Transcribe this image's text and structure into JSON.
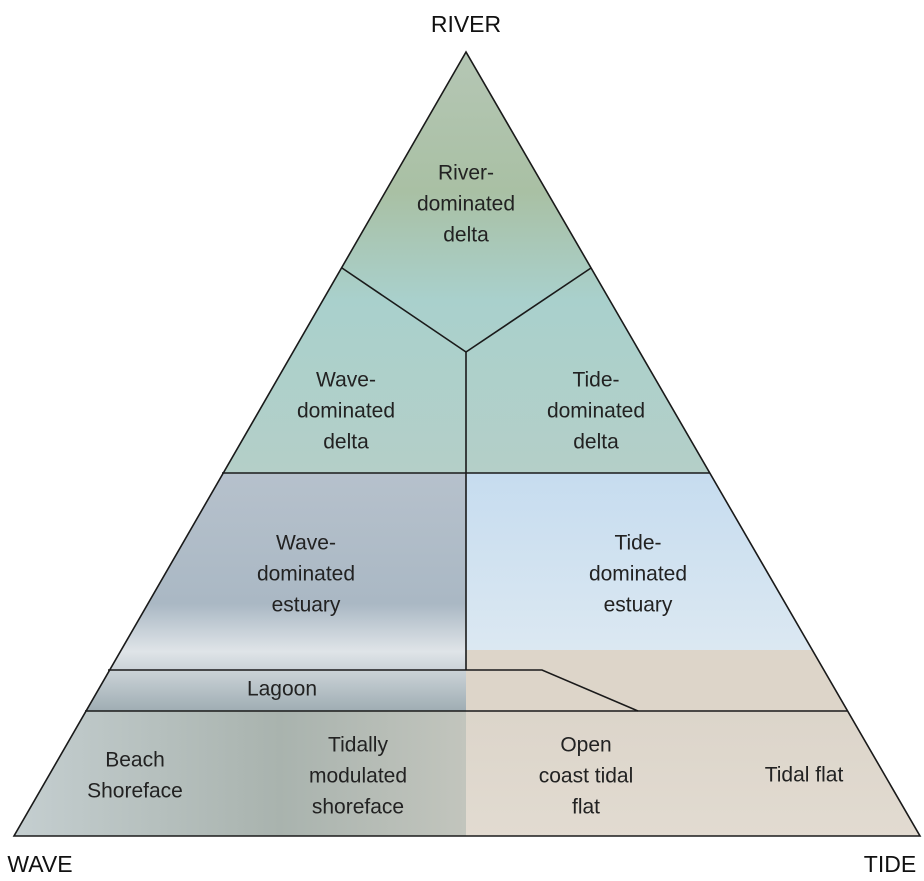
{
  "corners": {
    "top": "RIVER",
    "left": "WAVE",
    "right": "TIDE"
  },
  "regions": [
    {
      "lines": [
        "River-",
        "dominated",
        "delta"
      ]
    },
    {
      "lines": [
        "Wave-",
        "dominated",
        "delta"
      ]
    },
    {
      "lines": [
        "Tide-",
        "dominated",
        "delta"
      ]
    },
    {
      "lines": [
        "Wave-",
        "dominated",
        "estuary"
      ]
    },
    {
      "lines": [
        "Tide-",
        "dominated",
        "estuary"
      ]
    },
    {
      "lines": [
        "Lagoon"
      ]
    },
    {
      "lines": [
        "Beach",
        "Shoreface"
      ]
    },
    {
      "lines": [
        "Tidally",
        "modulated",
        "shoreface"
      ]
    },
    {
      "lines": [
        "Open",
        "coast tidal",
        "flat"
      ]
    },
    {
      "lines": [
        "Tidal flat"
      ]
    }
  ]
}
